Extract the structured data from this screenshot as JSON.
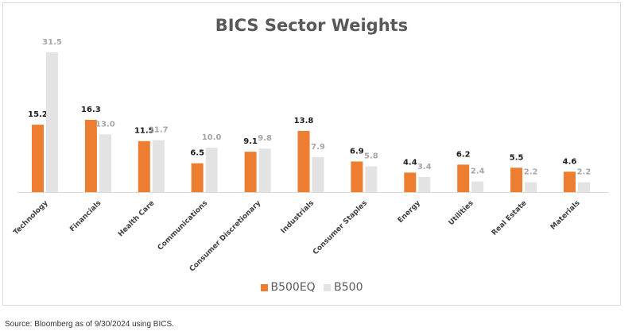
{
  "chart_data": {
    "type": "bar",
    "title": "BICS Sector Weights",
    "categories": [
      "Technology",
      "Financials",
      "Health Care",
      "Communications",
      "Consumer Discretionary",
      "Industrials",
      "Consumer Staples",
      "Energy",
      "Utilities",
      "Real Estate",
      "Materials"
    ],
    "series": [
      {
        "name": "B500EQ",
        "color": "#ed7d31",
        "values": [
          15.2,
          16.3,
          11.5,
          6.5,
          9.1,
          13.8,
          6.9,
          4.4,
          6.2,
          5.5,
          4.6
        ]
      },
      {
        "name": "B500",
        "color": "#e3e3e3",
        "label_color": "#a6a6a6",
        "values": [
          31.5,
          13.0,
          11.7,
          10.0,
          9.8,
          7.9,
          5.8,
          3.4,
          2.4,
          2.2,
          2.2
        ]
      }
    ],
    "ylim": [
      0,
      31.5
    ],
    "grid": false,
    "legend_position": "bottom"
  },
  "source": "Source: Bloomberg as of 9/30/2024 using BICS."
}
